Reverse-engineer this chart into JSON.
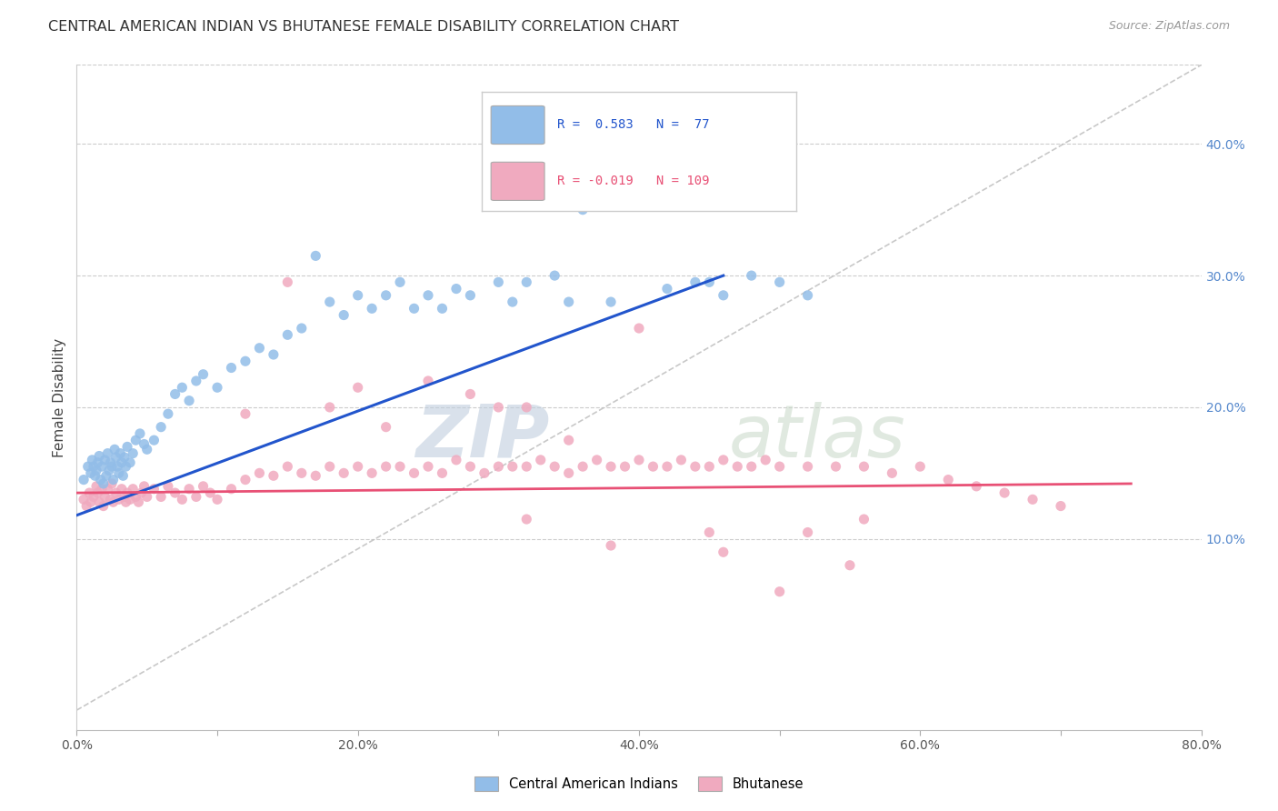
{
  "title": "CENTRAL AMERICAN INDIAN VS BHUTANESE FEMALE DISABILITY CORRELATION CHART",
  "source": "Source: ZipAtlas.com",
  "ylabel": "Female Disability",
  "xlim": [
    0.0,
    0.8
  ],
  "ylim": [
    -0.045,
    0.46
  ],
  "xticks": [
    0.0,
    0.1,
    0.2,
    0.3,
    0.4,
    0.5,
    0.6,
    0.7,
    0.8
  ],
  "xticklabels": [
    "0.0%",
    "",
    "20.0%",
    "",
    "40.0%",
    "",
    "60.0%",
    "",
    "80.0%"
  ],
  "yticks_right": [
    0.1,
    0.2,
    0.3,
    0.4
  ],
  "ytick_right_labels": [
    "10.0%",
    "20.0%",
    "30.0%",
    "40.0%"
  ],
  "blue_color": "#92BDE8",
  "pink_color": "#F0AABF",
  "blue_line_color": "#2255CC",
  "pink_line_color": "#E85075",
  "dashed_line_color": "#BBBBBB",
  "blue_scatter_x": [
    0.005,
    0.008,
    0.01,
    0.011,
    0.012,
    0.013,
    0.014,
    0.015,
    0.016,
    0.017,
    0.018,
    0.019,
    0.02,
    0.021,
    0.022,
    0.023,
    0.024,
    0.025,
    0.026,
    0.027,
    0.028,
    0.029,
    0.03,
    0.031,
    0.032,
    0.033,
    0.034,
    0.035,
    0.036,
    0.038,
    0.04,
    0.042,
    0.045,
    0.048,
    0.05,
    0.055,
    0.06,
    0.065,
    0.07,
    0.075,
    0.08,
    0.085,
    0.09,
    0.1,
    0.11,
    0.12,
    0.13,
    0.14,
    0.15,
    0.16,
    0.17,
    0.18,
    0.19,
    0.2,
    0.21,
    0.22,
    0.23,
    0.24,
    0.25,
    0.26,
    0.27,
    0.28,
    0.3,
    0.31,
    0.32,
    0.34,
    0.35,
    0.36,
    0.38,
    0.4,
    0.42,
    0.44,
    0.45,
    0.46,
    0.48,
    0.5,
    0.52
  ],
  "blue_scatter_y": [
    0.145,
    0.155,
    0.15,
    0.16,
    0.155,
    0.148,
    0.152,
    0.158,
    0.163,
    0.145,
    0.155,
    0.142,
    0.16,
    0.148,
    0.165,
    0.152,
    0.158,
    0.155,
    0.145,
    0.168,
    0.162,
    0.155,
    0.15,
    0.165,
    0.158,
    0.148,
    0.162,
    0.155,
    0.17,
    0.158,
    0.165,
    0.175,
    0.18,
    0.172,
    0.168,
    0.175,
    0.185,
    0.195,
    0.21,
    0.215,
    0.205,
    0.22,
    0.225,
    0.215,
    0.23,
    0.235,
    0.245,
    0.24,
    0.255,
    0.26,
    0.315,
    0.28,
    0.27,
    0.285,
    0.275,
    0.285,
    0.295,
    0.275,
    0.285,
    0.275,
    0.29,
    0.285,
    0.295,
    0.28,
    0.295,
    0.3,
    0.28,
    0.35,
    0.28,
    0.385,
    0.29,
    0.295,
    0.295,
    0.285,
    0.3,
    0.295,
    0.285
  ],
  "pink_scatter_x": [
    0.005,
    0.007,
    0.009,
    0.01,
    0.012,
    0.014,
    0.015,
    0.016,
    0.018,
    0.019,
    0.02,
    0.022,
    0.024,
    0.025,
    0.026,
    0.028,
    0.03,
    0.032,
    0.034,
    0.035,
    0.036,
    0.038,
    0.04,
    0.042,
    0.044,
    0.046,
    0.048,
    0.05,
    0.055,
    0.06,
    0.065,
    0.07,
    0.075,
    0.08,
    0.085,
    0.09,
    0.095,
    0.1,
    0.11,
    0.12,
    0.13,
    0.14,
    0.15,
    0.16,
    0.17,
    0.18,
    0.19,
    0.2,
    0.21,
    0.22,
    0.23,
    0.24,
    0.25,
    0.26,
    0.27,
    0.28,
    0.29,
    0.3,
    0.31,
    0.32,
    0.33,
    0.34,
    0.35,
    0.36,
    0.37,
    0.38,
    0.39,
    0.4,
    0.41,
    0.42,
    0.43,
    0.44,
    0.45,
    0.46,
    0.47,
    0.48,
    0.49,
    0.5,
    0.52,
    0.54,
    0.56,
    0.58,
    0.6,
    0.62,
    0.64,
    0.66,
    0.68,
    0.7,
    0.15,
    0.2,
    0.25,
    0.3,
    0.35,
    0.4,
    0.12,
    0.18,
    0.22,
    0.28,
    0.32,
    0.38,
    0.45,
    0.5,
    0.55,
    0.32,
    0.46,
    0.52,
    0.56
  ],
  "pink_scatter_y": [
    0.13,
    0.125,
    0.135,
    0.128,
    0.132,
    0.14,
    0.135,
    0.128,
    0.138,
    0.125,
    0.132,
    0.138,
    0.13,
    0.142,
    0.128,
    0.135,
    0.13,
    0.138,
    0.132,
    0.128,
    0.135,
    0.13,
    0.138,
    0.132,
    0.128,
    0.135,
    0.14,
    0.132,
    0.138,
    0.132,
    0.14,
    0.135,
    0.13,
    0.138,
    0.132,
    0.14,
    0.135,
    0.13,
    0.138,
    0.145,
    0.15,
    0.148,
    0.155,
    0.15,
    0.148,
    0.155,
    0.15,
    0.155,
    0.15,
    0.155,
    0.155,
    0.15,
    0.155,
    0.15,
    0.16,
    0.155,
    0.15,
    0.155,
    0.155,
    0.155,
    0.16,
    0.155,
    0.15,
    0.155,
    0.16,
    0.155,
    0.155,
    0.16,
    0.155,
    0.155,
    0.16,
    0.155,
    0.155,
    0.16,
    0.155,
    0.155,
    0.16,
    0.155,
    0.155,
    0.155,
    0.155,
    0.15,
    0.155,
    0.145,
    0.14,
    0.135,
    0.13,
    0.125,
    0.295,
    0.215,
    0.22,
    0.2,
    0.175,
    0.26,
    0.195,
    0.2,
    0.185,
    0.21,
    0.2,
    0.095,
    0.105,
    0.06,
    0.08,
    0.115,
    0.09,
    0.105,
    0.115
  ]
}
